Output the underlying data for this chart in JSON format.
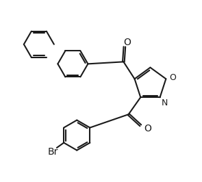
{
  "bg_color": "#ffffff",
  "line_color": "#1a1a1a",
  "line_width": 1.5,
  "figsize": [
    2.95,
    2.66
  ],
  "dpi": 100,
  "xlim": [
    0,
    10
  ],
  "ylim": [
    0,
    9
  ]
}
